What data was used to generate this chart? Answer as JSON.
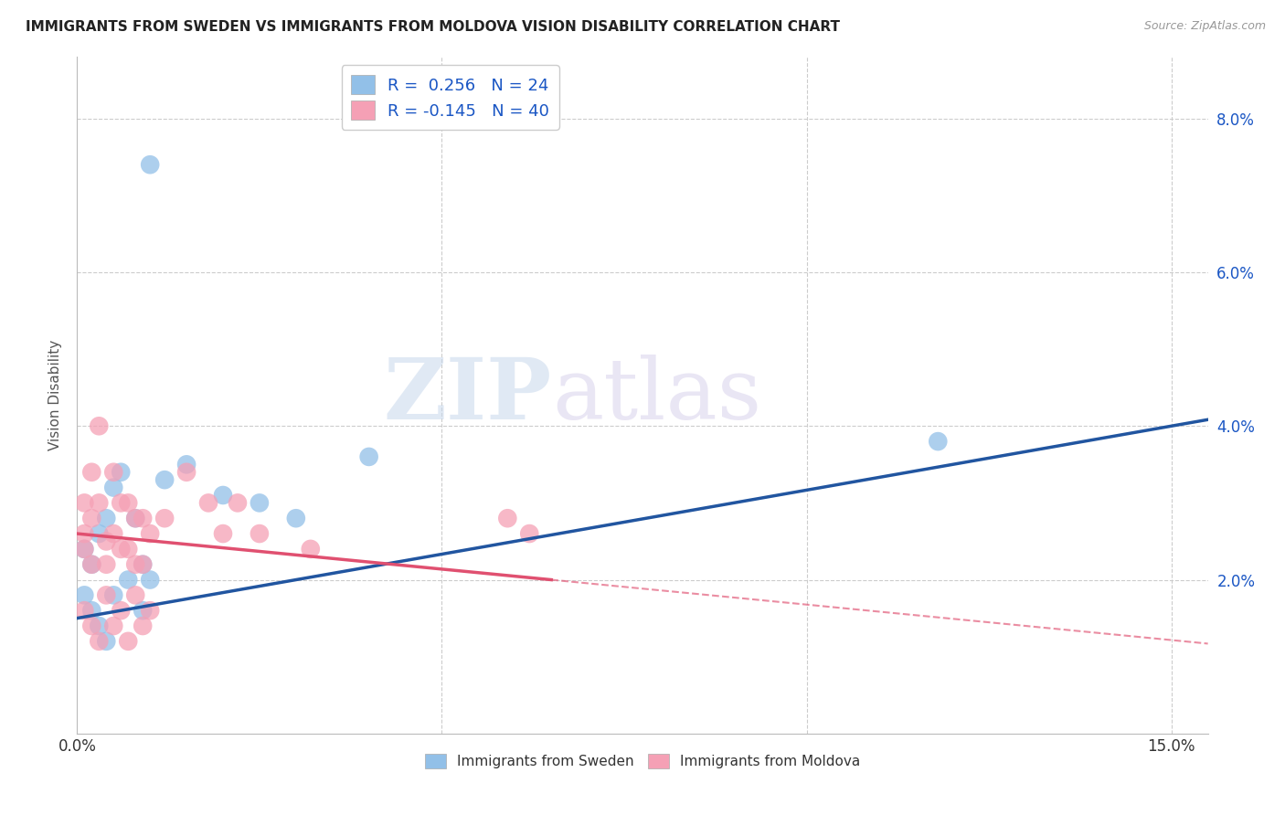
{
  "title": "IMMIGRANTS FROM SWEDEN VS IMMIGRANTS FROM MOLDOVA VISION DISABILITY CORRELATION CHART",
  "source": "Source: ZipAtlas.com",
  "ylabel": "Vision Disability",
  "xlim": [
    0.0,
    0.155
  ],
  "ylim": [
    0.0,
    0.088
  ],
  "ytick_vals": [
    0.02,
    0.04,
    0.06,
    0.08
  ],
  "ytick_labels": [
    "2.0%",
    "4.0%",
    "6.0%",
    "8.0%"
  ],
  "xtick_vals": [
    0.0,
    0.05,
    0.1,
    0.15
  ],
  "xtick_labels": [
    "0.0%",
    "",
    "",
    "15.0%"
  ],
  "sweden_color": "#92C0E8",
  "moldova_color": "#F5A0B5",
  "sweden_line_color": "#2155A0",
  "moldova_line_color": "#E05070",
  "R_sweden": "0.256",
  "N_sweden": "24",
  "R_moldova": "-0.145",
  "N_moldova": "40",
  "sweden_x": [
    0.001,
    0.002,
    0.003,
    0.004,
    0.005,
    0.006,
    0.008,
    0.009,
    0.01,
    0.012,
    0.015,
    0.02,
    0.025,
    0.03,
    0.04,
    0.001,
    0.002,
    0.003,
    0.004,
    0.005,
    0.007,
    0.009,
    0.118,
    0.01
  ],
  "sweden_y": [
    0.024,
    0.022,
    0.026,
    0.028,
    0.032,
    0.034,
    0.028,
    0.022,
    0.02,
    0.033,
    0.035,
    0.031,
    0.03,
    0.028,
    0.036,
    0.018,
    0.016,
    0.014,
    0.012,
    0.018,
    0.02,
    0.016,
    0.038,
    0.074
  ],
  "moldova_x": [
    0.001,
    0.001,
    0.001,
    0.002,
    0.002,
    0.002,
    0.003,
    0.003,
    0.004,
    0.004,
    0.005,
    0.005,
    0.006,
    0.006,
    0.007,
    0.007,
    0.008,
    0.008,
    0.009,
    0.009,
    0.01,
    0.012,
    0.015,
    0.018,
    0.02,
    0.022,
    0.025,
    0.032,
    0.059,
    0.062,
    0.001,
    0.002,
    0.003,
    0.004,
    0.005,
    0.006,
    0.007,
    0.008,
    0.009,
    0.01
  ],
  "moldova_y": [
    0.026,
    0.03,
    0.024,
    0.034,
    0.028,
    0.022,
    0.04,
    0.03,
    0.025,
    0.022,
    0.034,
    0.026,
    0.03,
    0.024,
    0.03,
    0.024,
    0.028,
    0.022,
    0.028,
    0.022,
    0.026,
    0.028,
    0.034,
    0.03,
    0.026,
    0.03,
    0.026,
    0.024,
    0.028,
    0.026,
    0.016,
    0.014,
    0.012,
    0.018,
    0.014,
    0.016,
    0.012,
    0.018,
    0.014,
    0.016
  ],
  "background_color": "#FFFFFF",
  "grid_color": "#CCCCCC",
  "watermark_zip": "ZIP",
  "watermark_atlas": "atlas",
  "legend_R_color": "#1A56C4",
  "legend_N_color": "#1A56C4"
}
